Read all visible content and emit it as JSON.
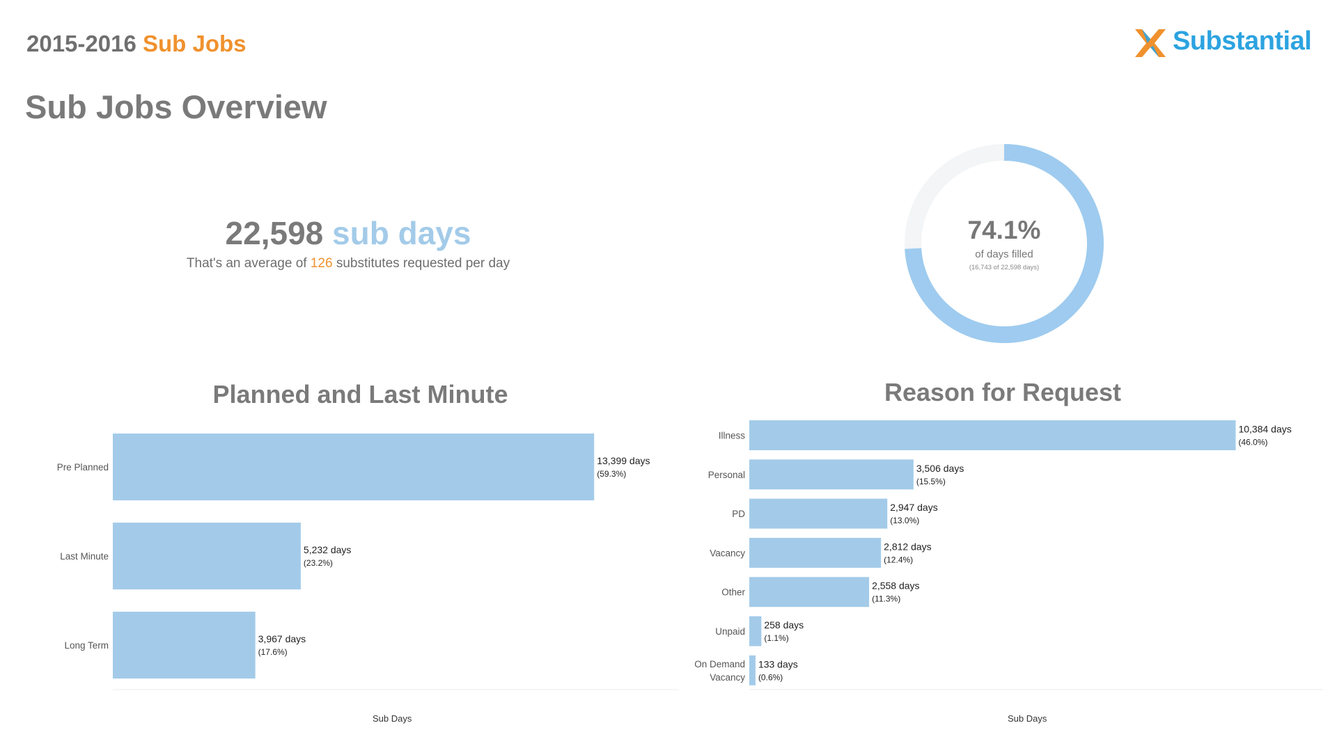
{
  "header": {
    "year": "2015-2016",
    "title_accent": "Sub Jobs"
  },
  "logo": {
    "text": "Substantial",
    "colors": {
      "icon_orange": "#f0912e",
      "text_blue": "#2ca3e0"
    }
  },
  "page_title": "Sub Jobs Overview",
  "kpi": {
    "total_number": "22,598",
    "total_unit": "sub days",
    "sub_prefix": "That's an average of",
    "avg_per_day": "126",
    "sub_suffix": "substitutes requested per day"
  },
  "colors": {
    "bar": "#a3cbe9",
    "orange": "#f0912e",
    "track": "#f3f5f6",
    "donut": "#9ecbef"
  },
  "donut": {
    "percent": "74.1%",
    "label": "of days filled",
    "detail": "(16,743 of 22,598 days)",
    "fraction": 0.741
  },
  "chart_data": [
    {
      "type": "bar",
      "orientation": "horizontal",
      "title": "Planned and Last Minute",
      "xlabel": "Sub Days",
      "ylabel": "",
      "categories": [
        "Pre Planned",
        "Last Minute",
        "Long Term"
      ],
      "values": [
        13399,
        5232,
        3967
      ],
      "value_labels": [
        "13,399 days",
        "5,232 days",
        "3,967 days"
      ],
      "percent_labels": [
        "(59.3%)",
        "(23.2%)",
        "(17.6%)"
      ],
      "xlim": [
        0,
        15740
      ]
    },
    {
      "type": "bar",
      "orientation": "horizontal",
      "title": "Reason for Request",
      "xlabel": "Sub Days",
      "ylabel": "",
      "categories": [
        "Illness",
        "Personal",
        "PD",
        "Vacancy",
        "Other",
        "Unpaid",
        "On Demand\nVacancy"
      ],
      "values": [
        10384,
        3506,
        2947,
        2812,
        2558,
        258,
        133
      ],
      "value_labels": [
        "10,384 days",
        "3,506 days",
        "2,947 days",
        "2,812 days",
        "2,558 days",
        "258 days",
        "133 days"
      ],
      "percent_labels": [
        "(46.0%)",
        "(15.5%)",
        "(13.0%)",
        "(12.4%)",
        "(11.3%)",
        "(1.1%)",
        "(0.6%)"
      ],
      "xlim": [
        0,
        12250
      ]
    }
  ]
}
